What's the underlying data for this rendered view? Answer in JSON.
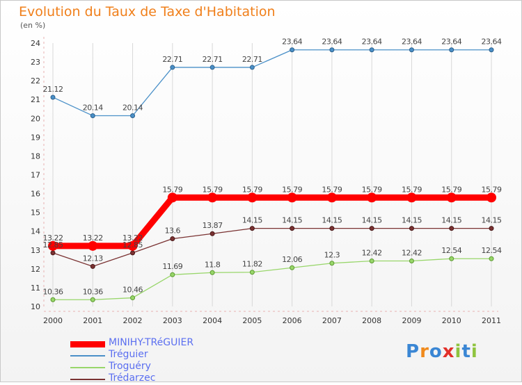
{
  "title": "Evolution du Taux de Taxe d'Habitation",
  "subtitle": "(en %)",
  "logo": {
    "text": "Proxiti",
    "colors": [
      "#3a86d4",
      "#f08a1c",
      "#3a86d4",
      "#e2302a",
      "#8fc43f",
      "#3a86d4",
      "#8fc43f"
    ]
  },
  "chart_data": {
    "type": "line",
    "x": [
      "2000",
      "2001",
      "2002",
      "2003",
      "2004",
      "2005",
      "2006",
      "2007",
      "2008",
      "2009",
      "2010",
      "2011"
    ],
    "ylim": [
      10,
      24
    ],
    "yticks": [
      "10",
      "11",
      "12",
      "13",
      "14",
      "15",
      "16",
      "17",
      "18",
      "19",
      "20",
      "21",
      "22",
      "23",
      "24"
    ],
    "grid": "vertical",
    "legend_position": "bottom-left",
    "series": [
      {
        "name": "MINIHY-TRéGUIER",
        "color": "#ff0000",
        "values": [
          13.22,
          13.22,
          13.22,
          15.79,
          15.79,
          15.79,
          15.79,
          15.79,
          15.79,
          15.79,
          15.79,
          15.79
        ],
        "labels": [
          "13.22",
          "13.22",
          "13.22",
          "15.79",
          "15.79",
          "15.79",
          "15.79",
          "15.79",
          "15.79",
          "15.79",
          "15.79",
          "15.79"
        ]
      },
      {
        "name": "Tréguier",
        "color": "#4a90c8",
        "values": [
          21.12,
          20.14,
          20.14,
          22.71,
          22.71,
          22.71,
          23.64,
          23.64,
          23.64,
          23.64,
          23.64,
          23.64
        ],
        "labels": [
          "21.12",
          "20.14",
          "20.14",
          "22.71",
          "22.71",
          "22.71",
          "23.64",
          "23.64",
          "23.64",
          "23.64",
          "23.64",
          "23.64"
        ]
      },
      {
        "name": "Troguéry",
        "color": "#98d66a",
        "values": [
          10.36,
          10.36,
          10.46,
          11.69,
          11.8,
          11.82,
          12.06,
          12.3,
          12.42,
          12.42,
          12.54,
          12.54
        ],
        "labels": [
          "10.36",
          "10.36",
          "10.46",
          "11.69",
          "11.8",
          "11.82",
          "12.06",
          "12.3",
          "12.42",
          "12.42",
          "12.54",
          "12.54"
        ]
      },
      {
        "name": "Trédarzec",
        "color": "#7a3232",
        "values": [
          12.85,
          12.13,
          12.85,
          13.6,
          13.87,
          14.15,
          14.15,
          14.15,
          14.15,
          14.15,
          14.15,
          14.15
        ],
        "labels": [
          "12.85",
          "12.13",
          "12.85",
          "13.6",
          "13.87",
          "14.15",
          "14.15",
          "14.15",
          "14.15",
          "14.15",
          "14.15",
          "14.15"
        ]
      }
    ]
  }
}
